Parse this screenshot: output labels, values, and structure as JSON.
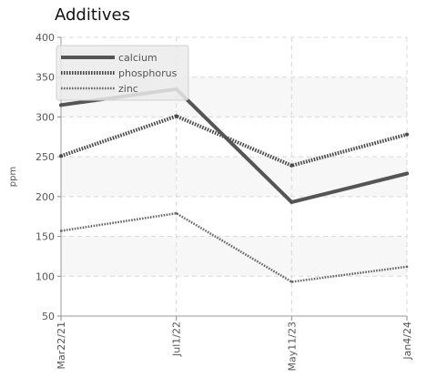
{
  "chart_data": {
    "type": "line",
    "title": "Additives",
    "xlabel": "",
    "ylabel": "ppm",
    "x": [
      "Mar22/21",
      "Jul1/22",
      "May11/23",
      "Jan4/24"
    ],
    "ylim": [
      50,
      400
    ],
    "yticks": [
      50,
      100,
      150,
      200,
      250,
      300,
      350,
      400
    ],
    "grid": true,
    "legend_position": "top-left",
    "series": [
      {
        "name": "calcium",
        "values": [
          315,
          335,
          193,
          229
        ],
        "color": "#555555",
        "style": "solid"
      },
      {
        "name": "phosphorus",
        "values": [
          251,
          301,
          239,
          278
        ],
        "color": "#4a4a4a",
        "style": "dotted-thick"
      },
      {
        "name": "zinc",
        "values": [
          157,
          179,
          93,
          112
        ],
        "color": "#666666",
        "style": "dotted-thin"
      }
    ]
  }
}
